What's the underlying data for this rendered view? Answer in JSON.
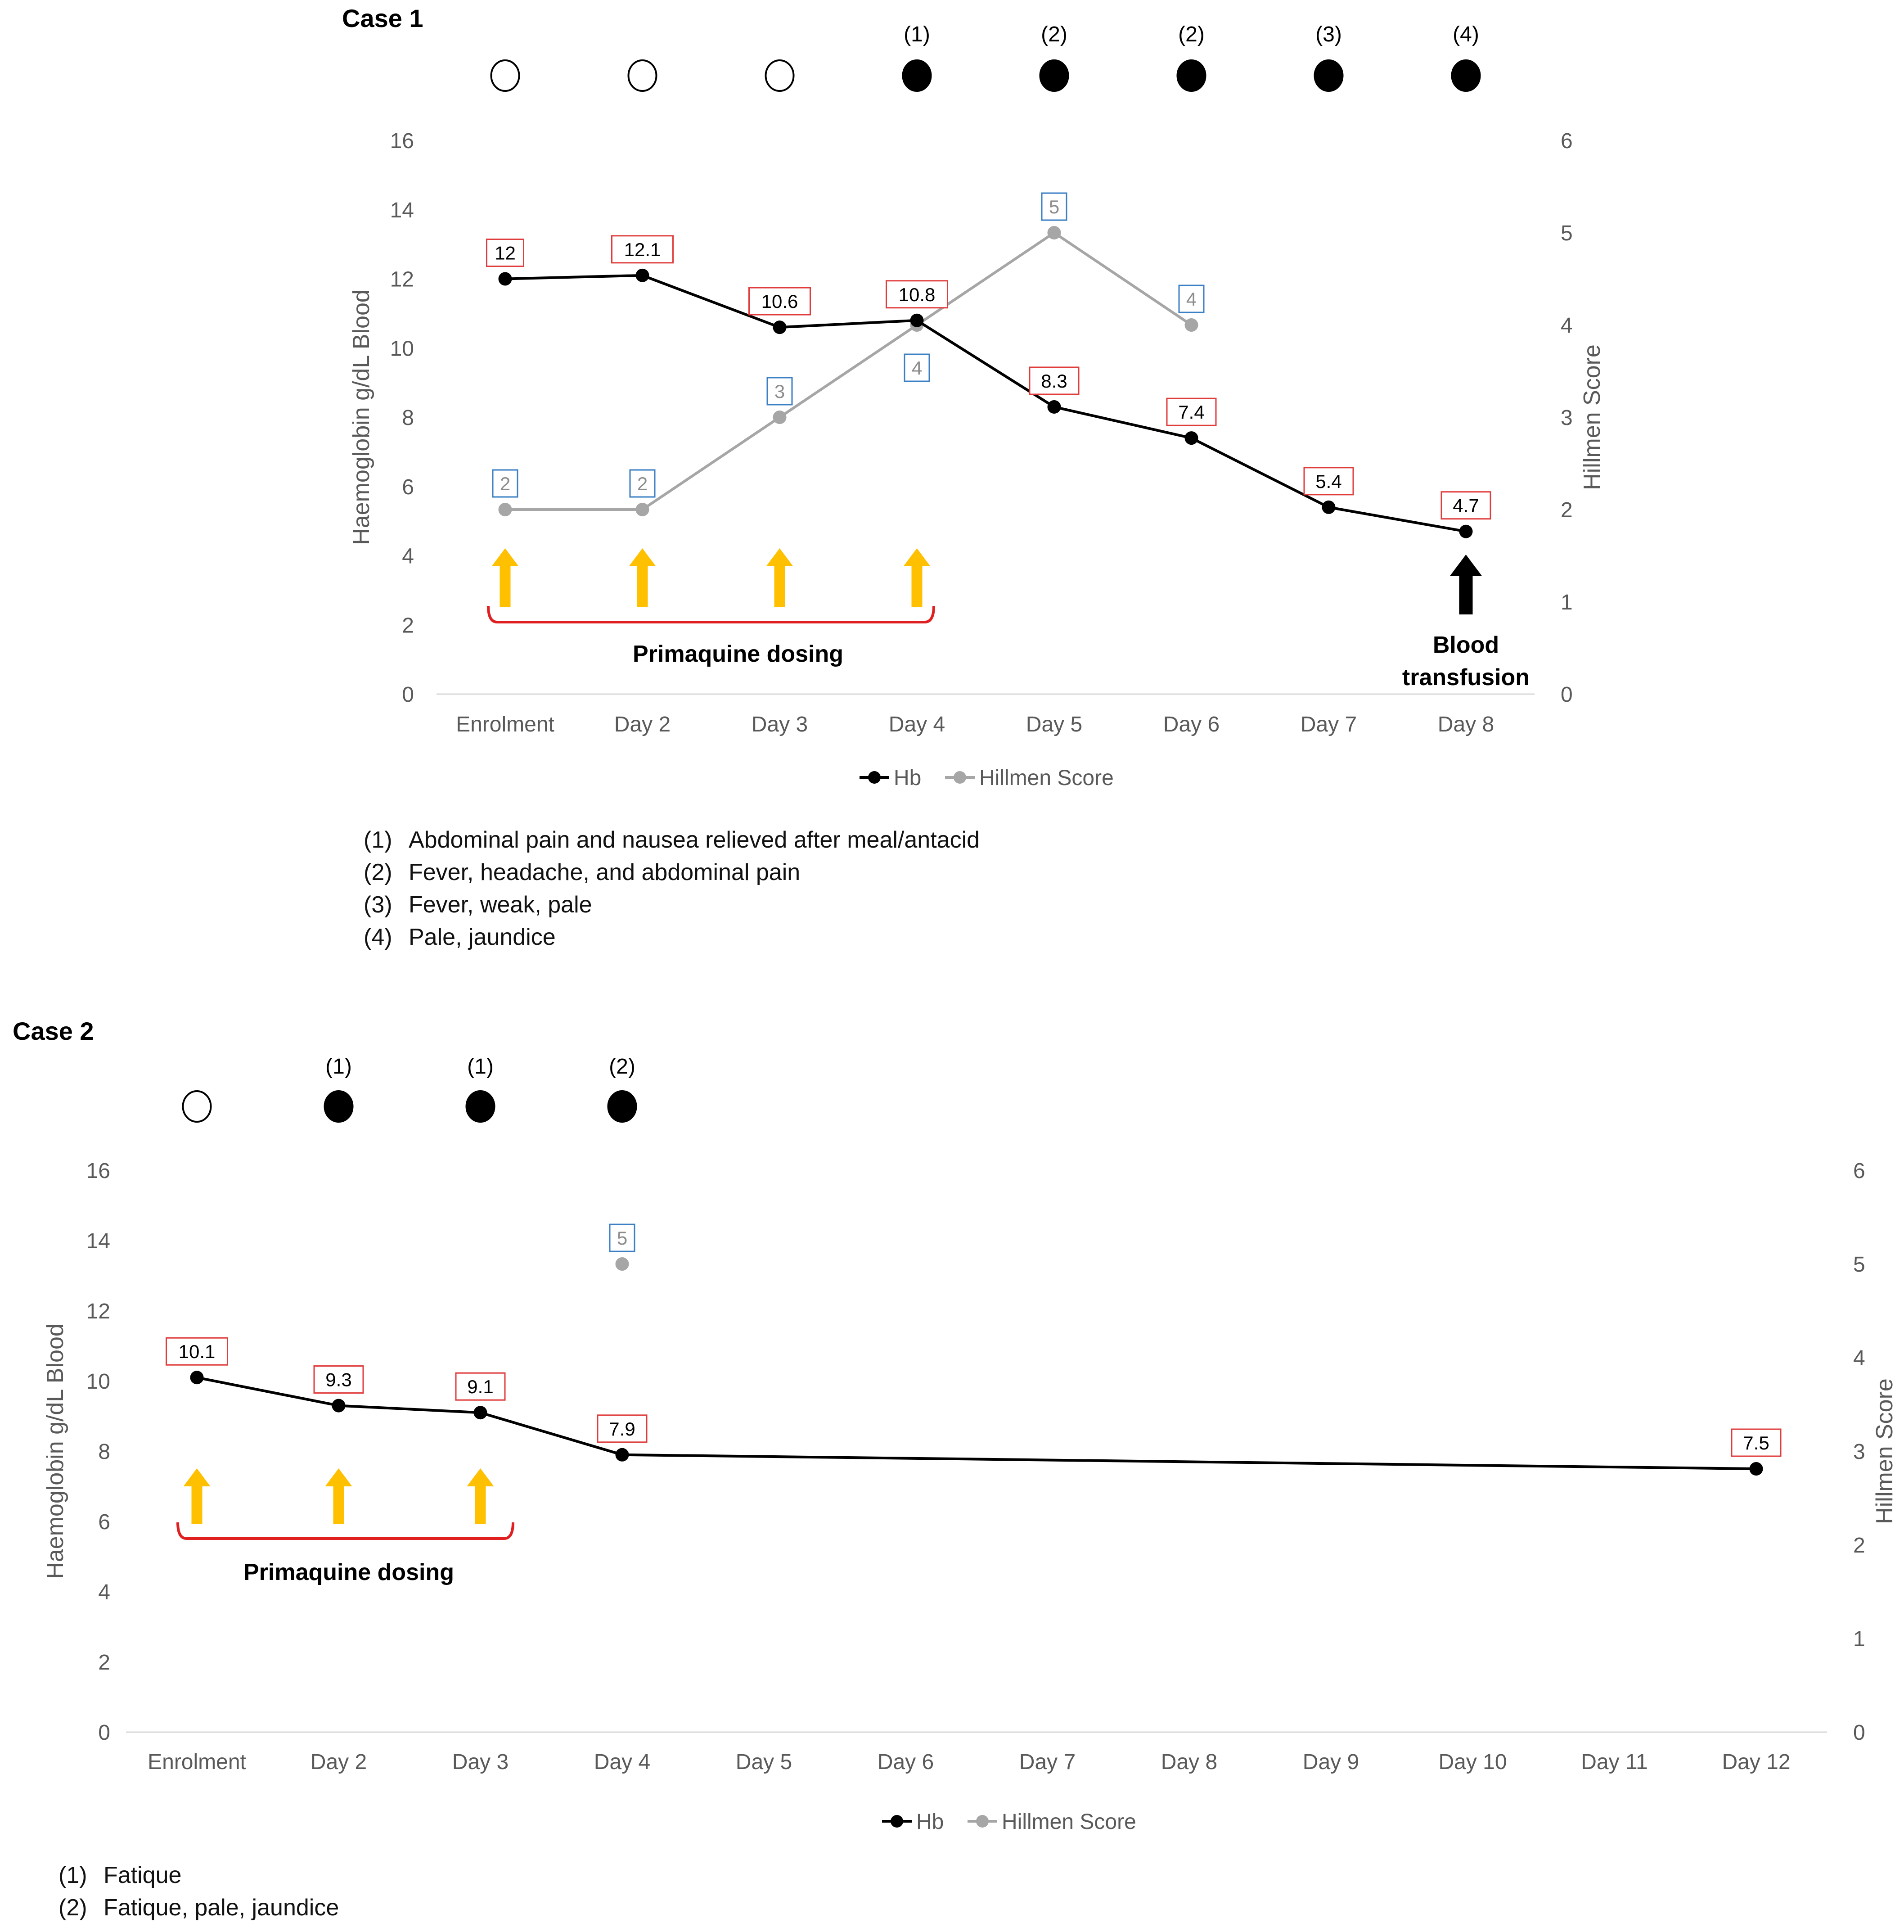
{
  "figure_type": "chart",
  "colors": {
    "hb_line": "#000000",
    "hillmen_line": "#a6a6a6",
    "hb_label_border": "#e03c3c",
    "hillmen_label_border": "#3b7fc4",
    "dosing_arrow": "#ffc000",
    "dosing_bracket": "#e02020",
    "axis_text": "#595959",
    "axis_line": "#d9d9d9",
    "transfusion_arrow": "#000000"
  },
  "chart_data": [
    {
      "type": "line",
      "case_title": "Case 1",
      "categories": [
        "Enrolment",
        "Day 2",
        "Day 3",
        "Day 4",
        "Day 5",
        "Day 6",
        "Day 7",
        "Day 8"
      ],
      "series": [
        {
          "name": "Hb",
          "axis": "left",
          "values": [
            12,
            12.1,
            10.6,
            10.8,
            8.3,
            7.4,
            5.4,
            4.7
          ],
          "labels": [
            "12",
            "12.1",
            "10.6",
            "10.8",
            "8.3",
            "7.4",
            "5.4",
            "4.7"
          ]
        },
        {
          "name": "Hillmen Score",
          "axis": "right",
          "values": [
            2,
            2,
            3,
            4,
            5,
            4,
            null,
            null
          ],
          "labels": [
            "2",
            "2",
            "3",
            "4",
            "5",
            "4",
            null,
            null
          ]
        }
      ],
      "ylabel_left": "Haemoglobin g/dL Blood",
      "ylabel_right": "Hillmen Score",
      "ylim_left": [
        0,
        16
      ],
      "ylim_right": [
        0,
        6
      ],
      "yticks_left": [
        "0",
        "2",
        "4",
        "6",
        "8",
        "10",
        "12",
        "14",
        "16"
      ],
      "yticks_right": [
        "0",
        "1",
        "2",
        "3",
        "4",
        "5",
        "6"
      ],
      "symptom_status": [
        "none",
        "none",
        "none",
        "symptomatic",
        "symptomatic",
        "symptomatic",
        "symptomatic",
        "symptomatic"
      ],
      "symptom_codes": [
        null,
        null,
        null,
        "(1)",
        "(2)",
        "(2)",
        "(3)",
        "(4)"
      ],
      "dosing_days": [
        0,
        1,
        2,
        3
      ],
      "dosing_label": "Primaquine dosing",
      "transfusion": {
        "day_index": 7,
        "label_lines": [
          "Blood",
          "transfusion"
        ]
      },
      "legend": {
        "position": "bottom",
        "entries": [
          "Hb",
          "Hillmen Score"
        ]
      },
      "footnotes": [
        {
          "num": "(1)",
          "text": "Abdominal pain and nausea relieved after meal/antacid"
        },
        {
          "num": "(2)",
          "text": "Fever, headache, and abdominal pain"
        },
        {
          "num": "(3)",
          "text": "Fever, weak, pale"
        },
        {
          "num": "(4)",
          "text": "Pale, jaundice"
        }
      ]
    },
    {
      "type": "line",
      "case_title": "Case 2",
      "categories": [
        "Enrolment",
        "Day 2",
        "Day 3",
        "Day 4",
        "Day 5",
        "Day 6",
        "Day 7",
        "Day 8",
        "Day 9",
        "Day 10",
        "Day 11",
        "Day 12"
      ],
      "series": [
        {
          "name": "Hb",
          "axis": "left",
          "values": [
            10.1,
            9.3,
            9.1,
            7.9,
            null,
            null,
            null,
            null,
            null,
            null,
            null,
            7.5
          ],
          "labels": [
            "10.1",
            "9.3",
            "9.1",
            "7.9",
            null,
            null,
            null,
            null,
            null,
            null,
            null,
            "7.5"
          ]
        },
        {
          "name": "Hillmen Score",
          "axis": "right",
          "values": [
            null,
            null,
            null,
            5,
            null,
            null,
            null,
            null,
            null,
            null,
            null,
            null
          ],
          "labels": [
            null,
            null,
            null,
            "5",
            null,
            null,
            null,
            null,
            null,
            null,
            null,
            null
          ]
        }
      ],
      "ylabel_left": "Haemoglobin g/dL Blood",
      "ylabel_right": "Hillmen Score",
      "ylim_left": [
        0,
        16
      ],
      "ylim_right": [
        0,
        6
      ],
      "yticks_left": [
        "0",
        "2",
        "4",
        "6",
        "8",
        "10",
        "12",
        "14",
        "16"
      ],
      "yticks_right": [
        "0",
        "1",
        "2",
        "3",
        "4",
        "5",
        "6"
      ],
      "symptom_status": [
        "none",
        "symptomatic",
        "symptomatic",
        "symptomatic",
        null,
        null,
        null,
        null,
        null,
        null,
        null,
        null
      ],
      "symptom_codes": [
        null,
        "(1)",
        "(1)",
        "(2)",
        null,
        null,
        null,
        null,
        null,
        null,
        null,
        null
      ],
      "dosing_days": [
        0,
        1,
        2
      ],
      "dosing_label": "Primaquine dosing",
      "transfusion": null,
      "legend": {
        "position": "bottom",
        "entries": [
          "Hb",
          "Hillmen Score"
        ]
      },
      "footnotes": [
        {
          "num": "(1)",
          "text": "Fatique"
        },
        {
          "num": "(2)",
          "text": "Fatique, pale, jaundice"
        }
      ]
    }
  ]
}
